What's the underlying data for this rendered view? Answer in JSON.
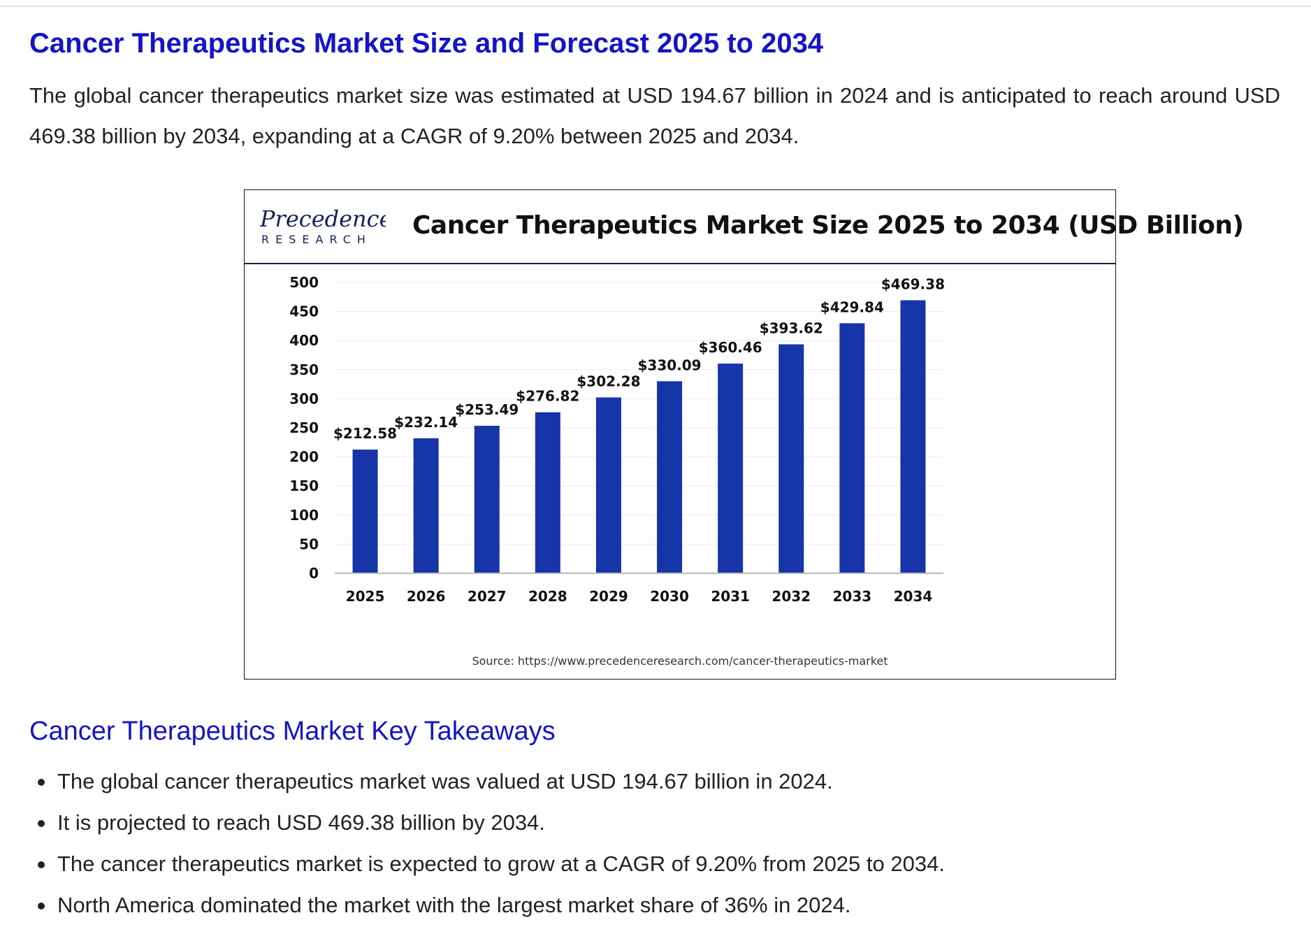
{
  "page": {
    "title": "Cancer Therapeutics Market Size and Forecast 2025 to 2034",
    "intro": "The global cancer therapeutics market size was estimated at USD 194.67 billion in 2024 and is anticipated to reach around USD 469.38 billion by 2034, expanding at a CAGR of 9.20% between 2025 and 2034.",
    "accent_color": "#1414c8"
  },
  "figure": {
    "logo": {
      "icon": "precedence-research-logo",
      "line1": "Precedence",
      "line2": "RESEARCH"
    },
    "title": "Cancer Therapeutics Market Size 2025 to 2034 (USD Billion)",
    "source": "Source: https://www.precedenceresearch.com/cancer-therapeutics-market"
  },
  "chart_data": {
    "type": "bar",
    "title": "Cancer Therapeutics Market Size 2025 to 2034 (USD Billion)",
    "categories": [
      "2025",
      "2026",
      "2027",
      "2028",
      "2029",
      "2030",
      "2031",
      "2032",
      "2033",
      "2034"
    ],
    "values": [
      212.58,
      232.14,
      253.49,
      276.82,
      302.28,
      330.09,
      360.46,
      393.62,
      429.84,
      469.38
    ],
    "value_labels": [
      "$212.58",
      "$232.14",
      "$253.49",
      "$276.82",
      "$302.28",
      "$330.09",
      "$360.46",
      "$393.62",
      "$429.84",
      "$469.38"
    ],
    "yticks": [
      0,
      50,
      100,
      150,
      200,
      250,
      300,
      350,
      400,
      450,
      500
    ],
    "ylim": [
      0,
      500
    ],
    "xlabel": "",
    "ylabel": "",
    "grid": true,
    "bar_color": "#1535a8"
  },
  "takeaways": {
    "title": "Cancer Therapeutics Market Key Takeaways",
    "items": [
      "The global cancer therapeutics market was valued at USD 194.67 billion in 2024.",
      "It is projected to reach USD 469.38 billion by 2034.",
      "The cancer therapeutics market is expected to grow at a CAGR of 9.20% from 2025 to 2034.",
      "North America dominated the market with the largest market share of 36% in 2024."
    ]
  }
}
